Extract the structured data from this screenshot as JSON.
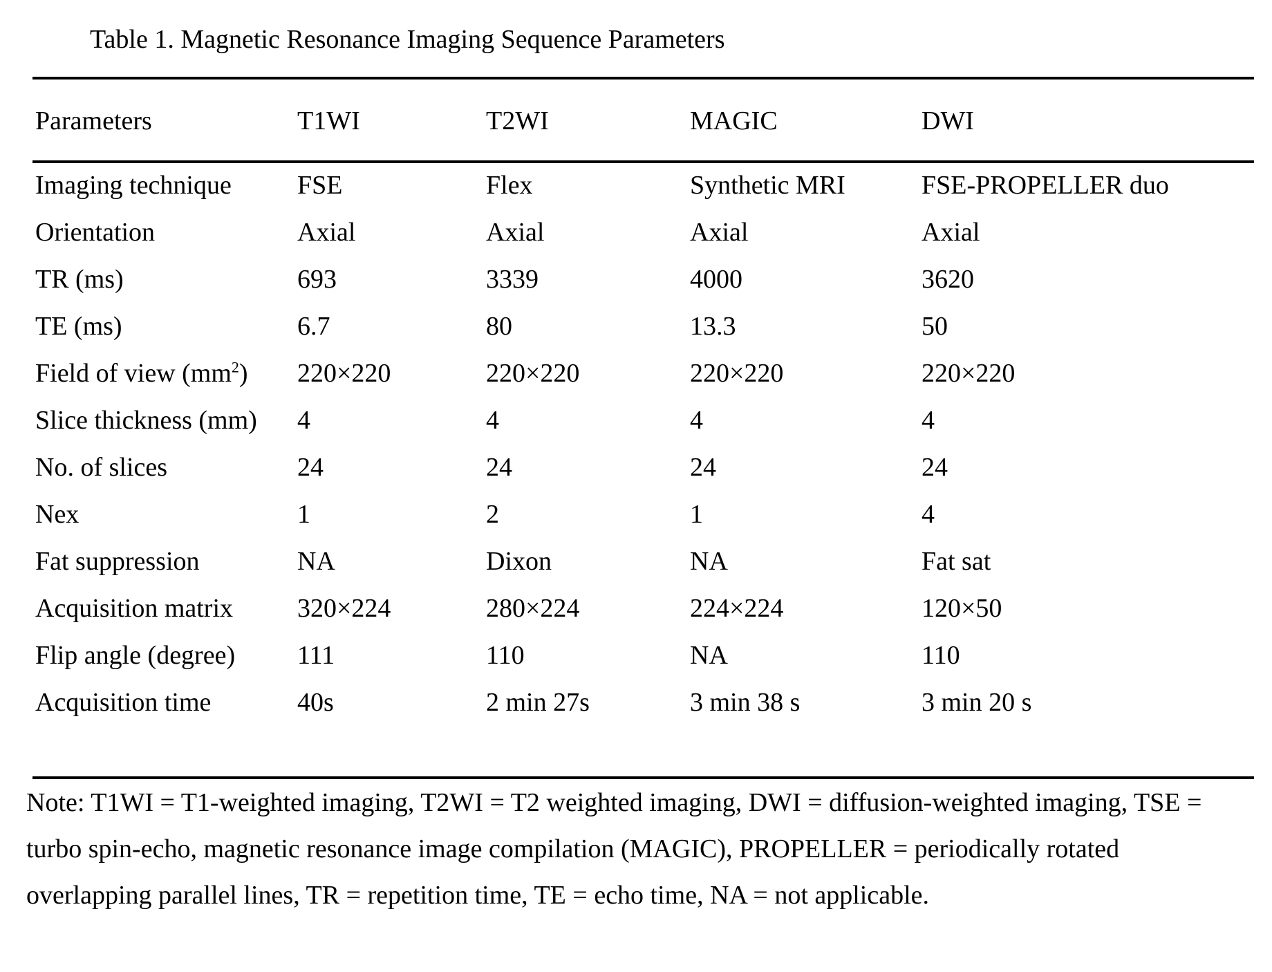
{
  "title": "Table 1. Magnetic Resonance Imaging Sequence Parameters",
  "headers": [
    "Parameters",
    "T1WI",
    "T2WI",
    "MAGIC",
    "DWI"
  ],
  "rows": [
    {
      "param": "Imaging technique",
      "sup": "",
      "param_after": "",
      "values": [
        "FSE",
        "Flex",
        "Synthetic MRI",
        "FSE-PROPELLER duo"
      ]
    },
    {
      "param": "Orientation",
      "sup": "",
      "param_after": "",
      "values": [
        "Axial",
        "Axial",
        "Axial",
        "Axial"
      ]
    },
    {
      "param": "TR (ms)",
      "sup": "",
      "param_after": "",
      "values": [
        "693",
        "3339",
        "4000",
        "3620"
      ]
    },
    {
      "param": "TE (ms)",
      "sup": "",
      "param_after": "",
      "values": [
        "6.7",
        "80",
        "13.3",
        "50"
      ]
    },
    {
      "param": "Field of view (mm",
      "sup": "2",
      "param_after": ")",
      "values": [
        "220×220",
        "220×220",
        "220×220",
        "220×220"
      ]
    },
    {
      "param": "Slice thickness (mm)",
      "sup": "",
      "param_after": "",
      "values": [
        "4",
        "4",
        "4",
        "4"
      ]
    },
    {
      "param": "No. of slices",
      "sup": "",
      "param_after": "",
      "values": [
        "24",
        "24",
        "24",
        "24"
      ]
    },
    {
      "param": "Nex",
      "sup": "",
      "param_after": "",
      "values": [
        "1",
        "2",
        "1",
        "4"
      ]
    },
    {
      "param": "Fat suppression",
      "sup": "",
      "param_after": "",
      "values": [
        "NA",
        "Dixon",
        "NA",
        "Fat sat"
      ]
    },
    {
      "param": "Acquisition matrix",
      "sup": "",
      "param_after": "",
      "values": [
        "320×224",
        "280×224",
        "224×224",
        "120×50"
      ]
    },
    {
      "param": "Flip angle (degree)",
      "sup": "",
      "param_after": "",
      "values": [
        "111",
        "110",
        "NA",
        "110"
      ]
    },
    {
      "param": "Acquisition time",
      "sup": "",
      "param_after": "",
      "values": [
        "40s",
        "2 min 27s",
        "3 min 38 s",
        "3 min 20 s"
      ]
    }
  ],
  "note": "Note: T1WI = T1-weighted imaging, T2WI = T2 weighted imaging, DWI = diffusion-weighted imaging, TSE = turbo spin-echo, magnetic resonance image compilation (MAGIC), PROPELLER = periodically rotated overlapping parallel lines, TR = repetition time, TE = echo time, NA = not applicable."
}
